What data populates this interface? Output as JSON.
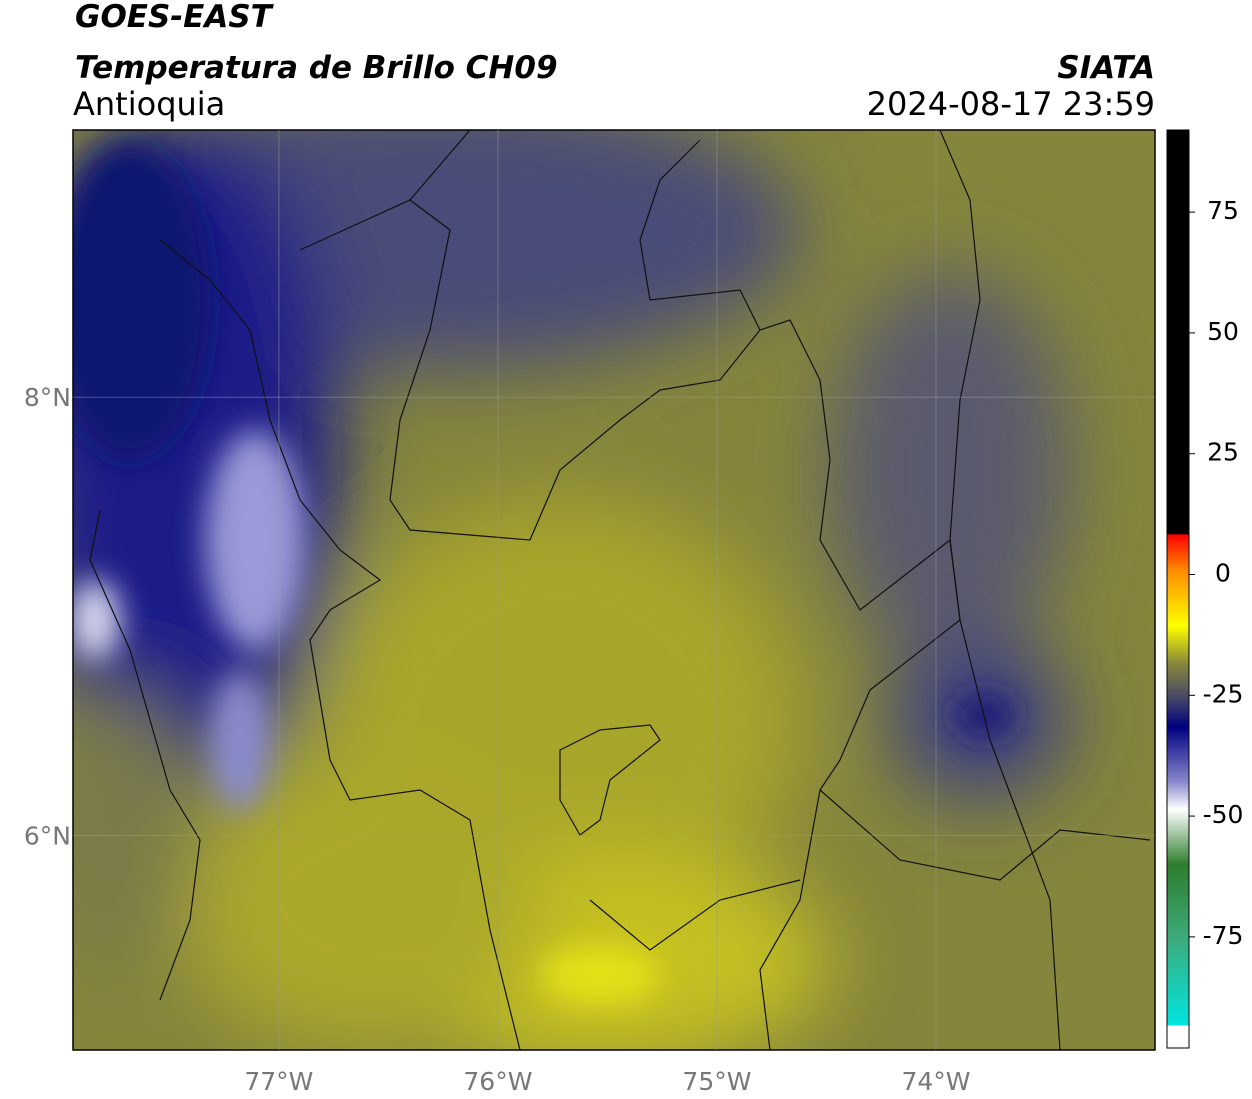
{
  "header": {
    "title": "GOES-EAST",
    "subtitle": "Temperatura de Brillo CH09",
    "region": "Antioquia",
    "source": "SIATA",
    "timestamp": "2024-08-17 23:59"
  },
  "map": {
    "xlim": [
      -77.94,
      -73.0
    ],
    "ylim": [
      5.02,
      9.22
    ],
    "xticks": [
      {
        "value": -77,
        "label": "77°W"
      },
      {
        "value": -76,
        "label": "76°W"
      },
      {
        "value": -75,
        "label": "75°W"
      },
      {
        "value": -74,
        "label": "74°W"
      }
    ],
    "yticks": [
      {
        "value": 8,
        "label": "8°N"
      },
      {
        "value": 6,
        "label": "6°N"
      }
    ],
    "grid": true
  },
  "colorbar": {
    "lim": [
      -98,
      92
    ],
    "ticks": [
      75,
      50,
      25,
      0,
      -25,
      -50,
      -75
    ]
  }
}
